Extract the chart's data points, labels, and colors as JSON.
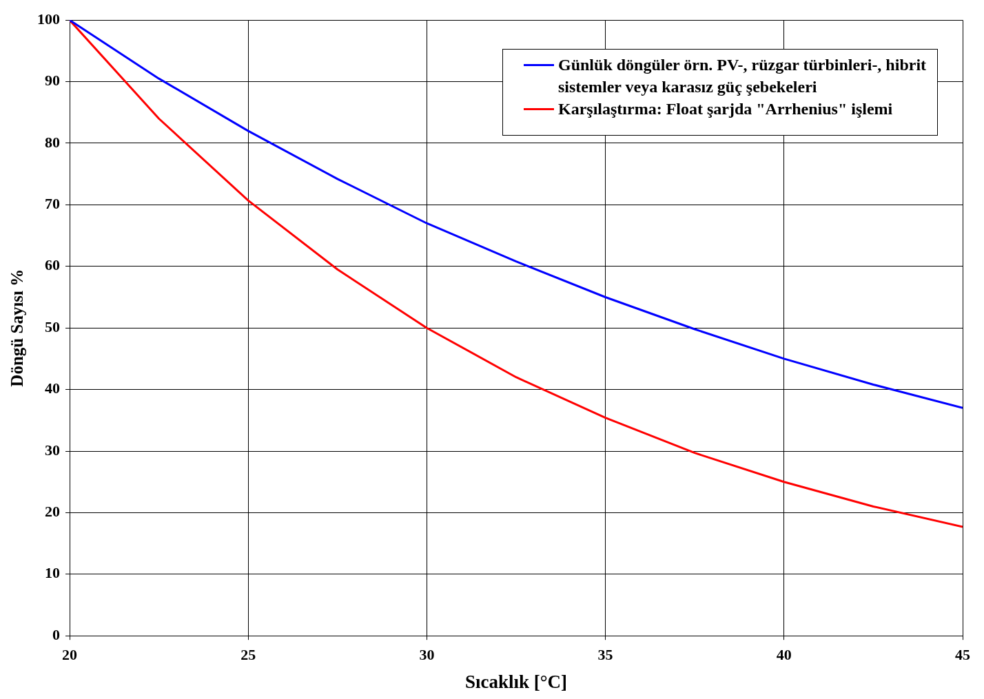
{
  "chart_data": {
    "type": "line",
    "xlabel": "Sıcaklık [°C]",
    "ylabel": "Döngü Sayısı %",
    "x": [
      20,
      22.5,
      25,
      27.5,
      30,
      32.5,
      35,
      37.5,
      40,
      42.5,
      45
    ],
    "series": [
      {
        "name": "Günlük döngüler örn. PV-, rüzgar türbinleri-, hibrit sistemler veya karasız güç şebekeleri",
        "color": "#0000ff",
        "values": [
          100,
          90.5,
          82,
          74.2,
          67,
          60.8,
          55,
          49.8,
          45,
          40.8,
          37
        ]
      },
      {
        "name": "Karşılaştırma: Float şarjda \"Arrhenius\" işlemi",
        "color": "#ff0000",
        "values": [
          100,
          84,
          70.7,
          59.5,
          50,
          42,
          35.4,
          29.7,
          25,
          21,
          17.7
        ]
      }
    ],
    "xlim": [
      20,
      45
    ],
    "xticks": [
      20,
      25,
      30,
      35,
      40,
      45
    ],
    "ylim": [
      0,
      100
    ],
    "yticks": [
      0,
      10,
      20,
      30,
      40,
      50,
      60,
      70,
      80,
      90,
      100
    ],
    "grid": true,
    "legend": "top right",
    "marker": "none",
    "line_style": "solid"
  }
}
